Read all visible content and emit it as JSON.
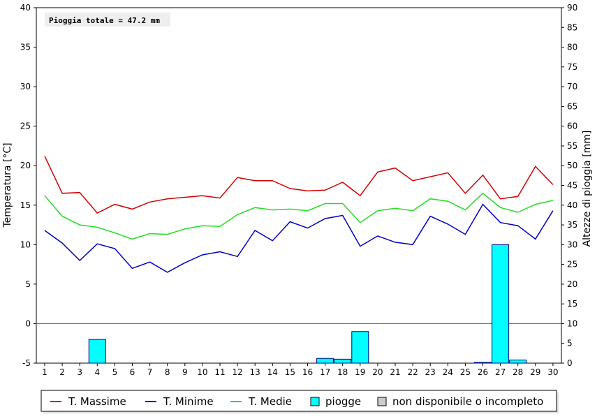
{
  "chart_data": {
    "type": "line",
    "x": [
      1,
      2,
      3,
      4,
      5,
      6,
      7,
      8,
      9,
      10,
      11,
      12,
      13,
      14,
      15,
      16,
      17,
      18,
      19,
      20,
      21,
      22,
      23,
      24,
      25,
      26,
      27,
      28,
      29,
      30
    ],
    "y_left_label": "Temperatura [°C]",
    "y_right_label": "Altezze di pioggia [mm]",
    "y_left_range": [
      -5,
      40
    ],
    "y_left_ticks": [
      -5,
      0,
      5,
      10,
      15,
      20,
      25,
      30,
      35,
      40
    ],
    "y_right_range": [
      0,
      90
    ],
    "y_right_ticks": [
      0,
      5,
      10,
      15,
      20,
      25,
      30,
      35,
      40,
      45,
      50,
      55,
      60,
      65,
      70,
      75,
      80,
      85,
      90
    ],
    "annotation": "Pioggia totale = 47.2 mm",
    "colors": {
      "max": "#d40000",
      "min": "#0000c0",
      "mean": "#22dd22",
      "rain": "#00ffff",
      "na": "#cccccc",
      "zero": "#666666"
    },
    "series": [
      {
        "name": "T. Massime",
        "axis": "left",
        "type": "line",
        "values": [
          21.2,
          16.5,
          16.6,
          14.0,
          15.1,
          14.5,
          15.4,
          15.8,
          16.0,
          16.2,
          15.9,
          18.5,
          18.1,
          18.1,
          17.1,
          16.8,
          16.9,
          17.9,
          16.2,
          19.2,
          19.7,
          18.1,
          18.6,
          19.1,
          16.5,
          18.8,
          15.8,
          16.1,
          19.9,
          17.6
        ]
      },
      {
        "name": "T. Minime",
        "axis": "left",
        "type": "line",
        "values": [
          11.8,
          10.2,
          8.0,
          10.1,
          9.5,
          7.0,
          7.8,
          6.5,
          7.7,
          8.7,
          9.1,
          8.5,
          11.8,
          10.5,
          12.9,
          12.1,
          13.3,
          13.7,
          9.8,
          11.1,
          10.3,
          10.0,
          13.6,
          12.6,
          11.3,
          15.1,
          12.8,
          12.4,
          10.7,
          14.3
        ]
      },
      {
        "name": "T. Medie",
        "axis": "left",
        "type": "line",
        "values": [
          16.2,
          13.6,
          12.5,
          12.2,
          11.5,
          10.7,
          11.4,
          11.3,
          12.0,
          12.4,
          12.3,
          13.8,
          14.7,
          14.4,
          14.5,
          14.3,
          15.2,
          15.2,
          12.8,
          14.3,
          14.6,
          14.3,
          15.8,
          15.5,
          14.4,
          16.5,
          14.7,
          14.1,
          15.1,
          15.6
        ]
      },
      {
        "name": "piogge",
        "axis": "right",
        "type": "bar",
        "values": [
          0,
          0,
          0,
          6.0,
          0,
          0,
          0,
          0,
          0,
          0,
          0,
          0,
          0,
          0,
          0,
          0,
          1.2,
          1.0,
          8.0,
          0,
          0,
          0,
          0,
          0,
          0,
          0.2,
          30.0,
          0.8,
          0,
          0
        ]
      }
    ],
    "legend": {
      "position": "bottom",
      "entries": [
        {
          "label": "T. Massime",
          "kind": "line",
          "color": "#d40000"
        },
        {
          "label": "T. Minime",
          "kind": "line",
          "color": "#0000c0"
        },
        {
          "label": "T. Medie",
          "kind": "line",
          "color": "#22dd22"
        },
        {
          "label": "piogge",
          "kind": "box",
          "color": "#00ffff"
        },
        {
          "label": "non disponibile o incompleto",
          "kind": "box",
          "color": "#cccccc"
        }
      ]
    }
  }
}
